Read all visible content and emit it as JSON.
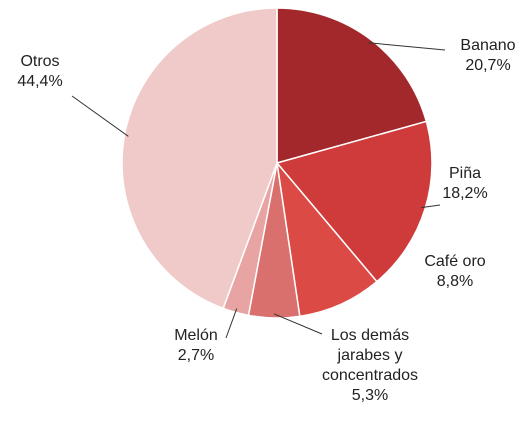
{
  "chart_data": {
    "type": "pie",
    "categories": [
      "Banano",
      "Piña",
      "Café oro",
      "Los demás jarabes y concentrados",
      "Melón",
      "Otros"
    ],
    "values": [
      20.7,
      18.2,
      8.8,
      5.3,
      2.7,
      44.4
    ],
    "value_labels": [
      "20,7%",
      "18,2%",
      "8,8%",
      "5,3%",
      "2,7%",
      "44,4%"
    ],
    "colors": [
      "#a3282b",
      "#cf3a3b",
      "#dc4a45",
      "#d9706e",
      "#e8a4a3",
      "#f0c9c9"
    ]
  }
}
